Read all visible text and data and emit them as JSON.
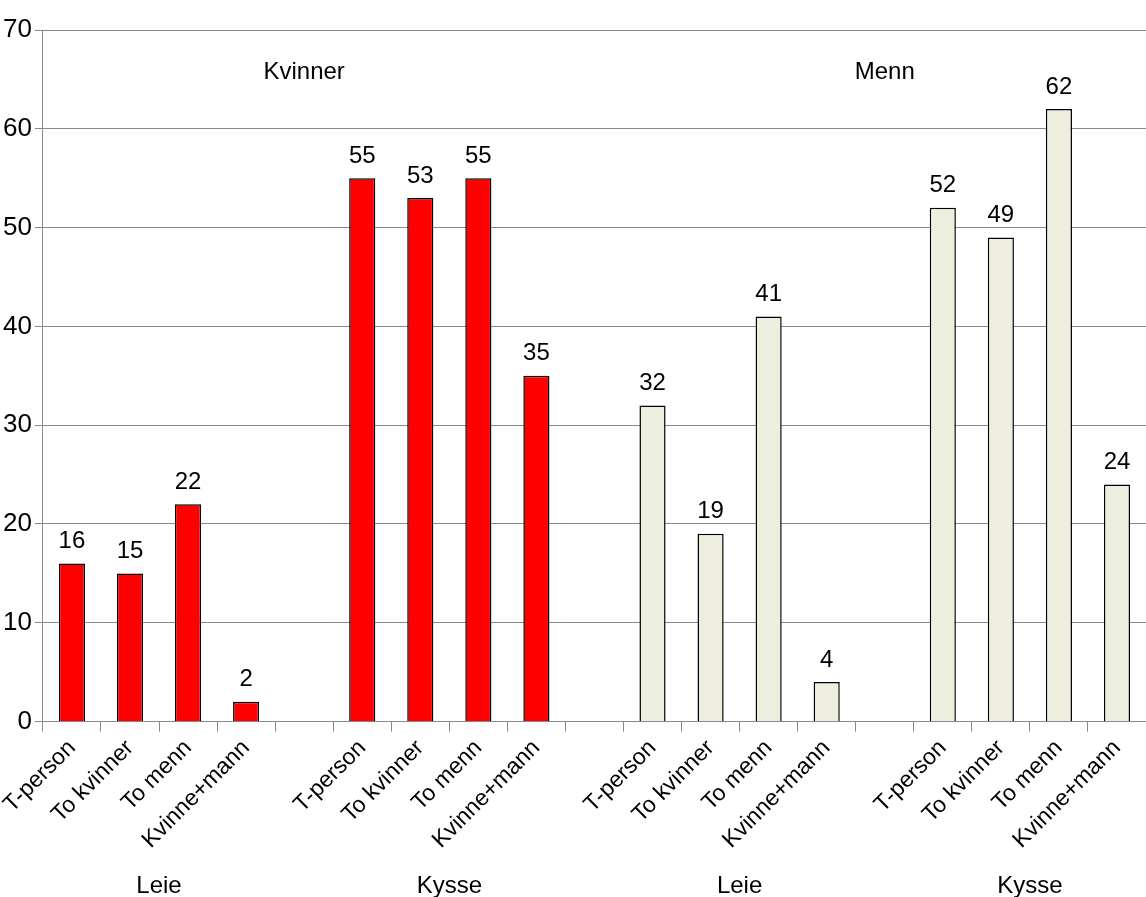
{
  "chart_data": {
    "type": "bar",
    "categories": [
      "T-person",
      "To kvinner",
      "To menn",
      "Kvinne+mann",
      null,
      "T-person",
      "To kvinner",
      "To menn",
      "Kvinne+mann",
      null,
      "T-person",
      "To kvinner",
      "To menn",
      "Kvinne+mann",
      null,
      "T-person",
      "To kvinner",
      "To menn",
      "Kvinne+mann"
    ],
    "series": [
      {
        "color": "#ff0000",
        "values": [
          16,
          15,
          22,
          2,
          null,
          55,
          53,
          55,
          35,
          null,
          null,
          null,
          null,
          null,
          null,
          null,
          null,
          null,
          null
        ]
      },
      {
        "color": "#eeeedf",
        "values": [
          null,
          null,
          null,
          null,
          null,
          null,
          null,
          null,
          null,
          null,
          32,
          19,
          41,
          4,
          null,
          52,
          49,
          62,
          24
        ]
      }
    ],
    "ylim": [
      0,
      70
    ],
    "yticks": [
      0,
      10,
      20,
      30,
      40,
      50,
      60,
      70
    ],
    "grid": "y",
    "legend": false,
    "data_labels": true,
    "annotations": [
      "Kvinner",
      "Menn",
      "Leie",
      "Kysse",
      "Leie",
      "Kysse"
    ]
  }
}
